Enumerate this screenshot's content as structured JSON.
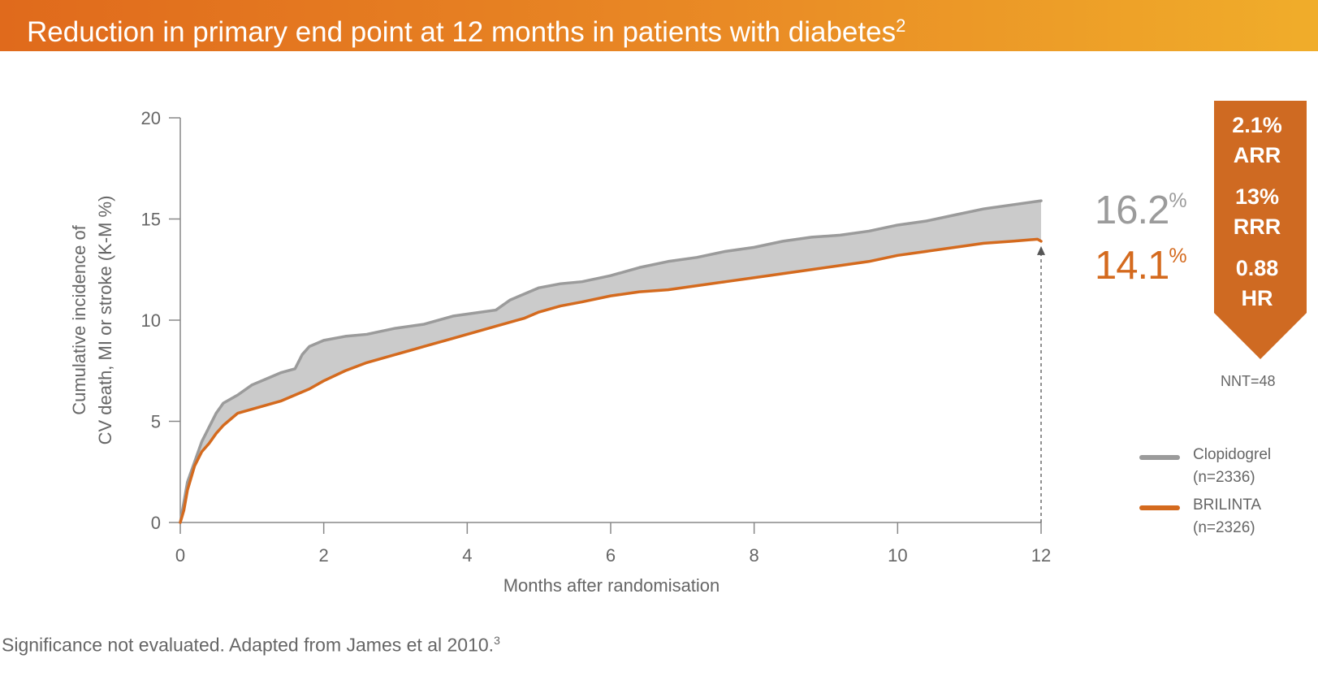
{
  "title": {
    "text": "Reduction in primary end point at 12 months in patients with diabetes",
    "superscript": "2"
  },
  "footnote": {
    "text": "Significance not evaluated. Adapted from James et al 2010.",
    "superscript": "3"
  },
  "colors": {
    "orange": "#d46a1e",
    "grey": "#9b9b9b",
    "fill_band": "#cbcbcb",
    "axis": "#888888",
    "text": "#666666"
  },
  "stats": {
    "arr_value": "2.1%",
    "arr_label": "ARR",
    "rrr_value": "13%",
    "rrr_label": "RRR",
    "hr_value": "0.88",
    "hr_label": "HR",
    "nnt": "NNT=48"
  },
  "end_values": {
    "clopidogrel": {
      "number": "16.2",
      "unit": "%"
    },
    "brilinta": {
      "number": "14.1",
      "unit": "%"
    }
  },
  "legend": [
    {
      "name": "Clopidogrel",
      "n": "(n=2336)",
      "color": "#9b9b9b"
    },
    {
      "name": "BRILINTA",
      "n": "(n=2326)",
      "color": "#d46a1e"
    }
  ],
  "chart_data": {
    "type": "line",
    "xlabel": "Months after randomisation",
    "ylabel_lines": [
      "Cumulative incidence of",
      "CV death, MI or stroke (K-M %)"
    ],
    "xlim": [
      0,
      12
    ],
    "ylim": [
      0,
      20
    ],
    "xticks": [
      0,
      2,
      4,
      6,
      8,
      10,
      12
    ],
    "yticks": [
      0,
      5,
      10,
      15,
      20
    ],
    "grid": false,
    "series": [
      {
        "name": "Clopidogrel",
        "color": "#9b9b9b",
        "x": [
          0,
          0.05,
          0.1,
          0.2,
          0.3,
          0.4,
          0.5,
          0.6,
          0.8,
          1.0,
          1.2,
          1.4,
          1.6,
          1.7,
          1.8,
          2.0,
          2.3,
          2.6,
          3.0,
          3.4,
          3.8,
          4.0,
          4.4,
          4.6,
          4.8,
          5.0,
          5.3,
          5.6,
          6.0,
          6.4,
          6.8,
          7.2,
          7.6,
          8.0,
          8.4,
          8.8,
          9.2,
          9.6,
          10.0,
          10.4,
          10.8,
          11.2,
          11.6,
          12.0
        ],
        "y": [
          0,
          1.0,
          2.0,
          3.0,
          4.0,
          4.7,
          5.4,
          5.9,
          6.3,
          6.8,
          7.1,
          7.4,
          7.6,
          8.3,
          8.7,
          9.0,
          9.2,
          9.3,
          9.6,
          9.8,
          10.2,
          10.3,
          10.5,
          11.0,
          11.3,
          11.6,
          11.8,
          11.9,
          12.2,
          12.6,
          12.9,
          13.1,
          13.4,
          13.6,
          13.9,
          14.1,
          14.2,
          14.4,
          14.7,
          14.9,
          15.2,
          15.5,
          15.7,
          15.9
        ]
      },
      {
        "name": "BRILINTA",
        "color": "#d46a1e",
        "x": [
          0,
          0.05,
          0.1,
          0.2,
          0.3,
          0.4,
          0.5,
          0.6,
          0.7,
          0.8,
          1.0,
          1.2,
          1.4,
          1.6,
          1.8,
          2.0,
          2.3,
          2.6,
          3.0,
          3.4,
          3.8,
          4.0,
          4.4,
          4.8,
          5.0,
          5.3,
          5.6,
          6.0,
          6.4,
          6.8,
          7.2,
          7.6,
          8.0,
          8.4,
          8.8,
          9.2,
          9.6,
          10.0,
          10.4,
          10.8,
          11.2,
          11.6,
          11.95,
          12.0
        ],
        "y": [
          0,
          0.6,
          1.6,
          2.8,
          3.5,
          3.9,
          4.4,
          4.8,
          5.1,
          5.4,
          5.6,
          5.8,
          6.0,
          6.3,
          6.6,
          7.0,
          7.5,
          7.9,
          8.3,
          8.7,
          9.1,
          9.3,
          9.7,
          10.1,
          10.4,
          10.7,
          10.9,
          11.2,
          11.4,
          11.5,
          11.7,
          11.9,
          12.1,
          12.3,
          12.5,
          12.7,
          12.9,
          13.2,
          13.4,
          13.6,
          13.8,
          13.9,
          14.0,
          13.9
        ]
      }
    ]
  }
}
